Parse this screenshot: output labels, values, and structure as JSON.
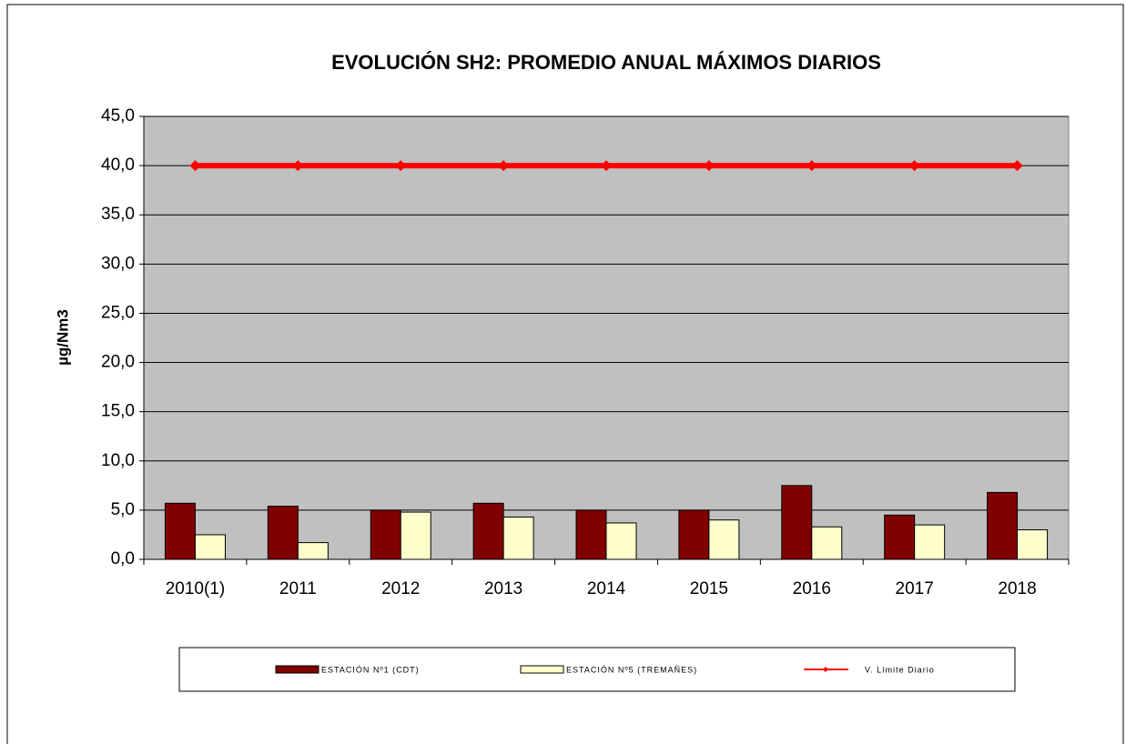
{
  "chart_data": {
    "type": "bar",
    "title": "EVOLUCIÓN SH2: PROMEDIO ANUAL MÁXIMOS DIARIOS",
    "y_label": "µg/Nm3",
    "categories": [
      "2010(1)",
      "2011",
      "2012",
      "2013",
      "2014",
      "2015",
      "2016",
      "2017",
      "2018"
    ],
    "series": [
      {
        "name": "ESTACIÓN Nº1 (CDT)",
        "color": "#800000",
        "values": [
          5.7,
          5.4,
          5.0,
          5.7,
          5.0,
          5.0,
          7.5,
          4.5,
          6.8
        ]
      },
      {
        "name": "ESTACIÓN Nº5 (TREMAÑES)",
        "color": "#ffffcc",
        "values": [
          2.5,
          1.7,
          4.8,
          4.3,
          3.7,
          4.0,
          3.3,
          3.5,
          3.0
        ]
      },
      {
        "name": "V. Límite Diario",
        "color": "#ff0000",
        "type": "line",
        "values": [
          40,
          40,
          40,
          40,
          40,
          40,
          40,
          40,
          40
        ]
      }
    ],
    "ylim": [
      0,
      45
    ],
    "yticks": [
      {
        "value": 0,
        "label": "0,0"
      },
      {
        "value": 5,
        "label": "5,0"
      },
      {
        "value": 10,
        "label": "10,0"
      },
      {
        "value": 15,
        "label": "15,0"
      },
      {
        "value": 20,
        "label": "20,0"
      },
      {
        "value": 25,
        "label": "25,0"
      },
      {
        "value": 30,
        "label": "30,0"
      },
      {
        "value": 35,
        "label": "35,0"
      },
      {
        "value": 40,
        "label": "40,0"
      },
      {
        "value": 45,
        "label": "45,0"
      }
    ],
    "grid": true,
    "plot_background": "#c0c0c0",
    "legend": "bottom"
  }
}
